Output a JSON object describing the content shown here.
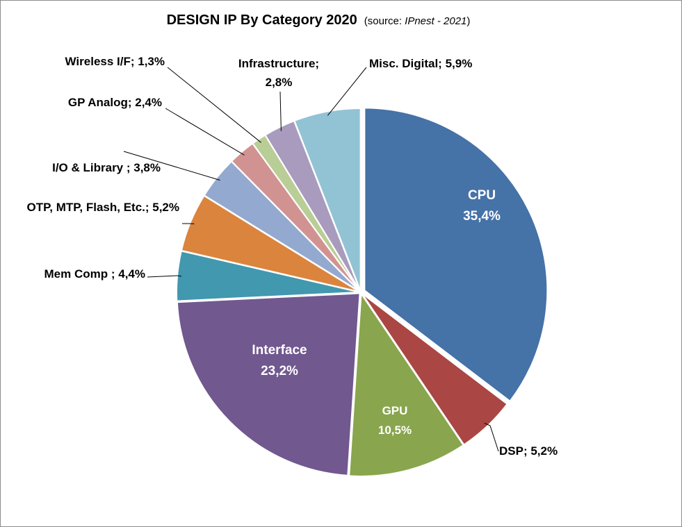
{
  "chart_data": {
    "type": "pie",
    "title": "DESIGN IP By Category 2020",
    "subtitle_prefix": "(source:",
    "subtitle_source": "IPnest - 2021",
    "subtitle_suffix": ")",
    "start_angle_deg": 0,
    "direction": "clockwise",
    "exploded": true,
    "slices": [
      {
        "label": "CPU",
        "display": "35,4%",
        "value": 35.4,
        "color": "#4572A7"
      },
      {
        "label": "DSP;",
        "display": "5,2%",
        "value": 5.2,
        "color": "#AA4643"
      },
      {
        "label": "GPU",
        "display": "10,5%",
        "value": 10.5,
        "color": "#89A54E"
      },
      {
        "label": "Interface",
        "display": "23,2%",
        "value": 23.2,
        "color": "#71588F"
      },
      {
        "label": "Mem Comp ;",
        "display": "4,4%",
        "value": 4.4,
        "color": "#4198AF"
      },
      {
        "label": "OTP, MTP, Flash, Etc.;",
        "display": "5,2%",
        "value": 5.2,
        "color": "#DB843D"
      },
      {
        "label": "I/O & Library ;",
        "display": "3,8%",
        "value": 3.8,
        "color": "#93A9CF"
      },
      {
        "label": "GP Analog;",
        "display": "2,4%",
        "value": 2.4,
        "color": "#D19392"
      },
      {
        "label": "Wireless I/F;",
        "display": "1,3%",
        "value": 1.3,
        "color": "#B9CD96"
      },
      {
        "label": "Infrastructure;",
        "display": "2,8%",
        "value": 2.8,
        "color": "#A99BBD"
      },
      {
        "label": "Misc. Digital;",
        "display": "5,9%",
        "value": 5.9,
        "color": "#92C3D5"
      }
    ]
  }
}
